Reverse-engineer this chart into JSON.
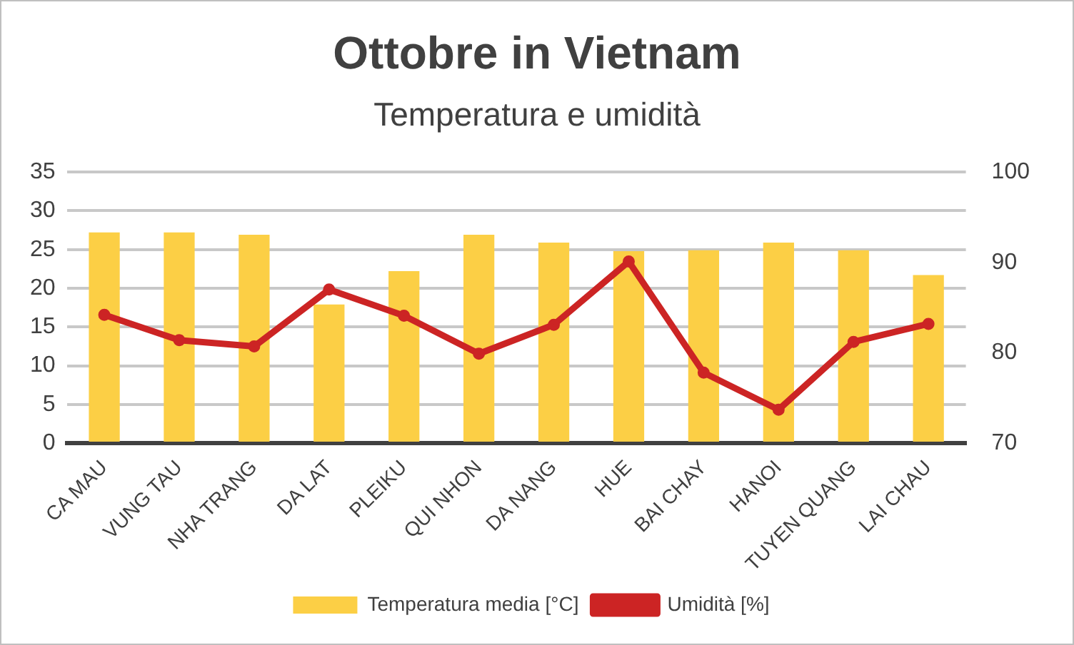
{
  "chart_data": {
    "type": "bar",
    "title": "Ottobre in Vietnam",
    "subtitle": "Temperatura e umidità",
    "categories": [
      "CA MAU",
      "VUNG TAU",
      "NHA TRANG",
      "DA LAT",
      "PLEIKU",
      "QUI NHON",
      "DA NANG",
      "HUE",
      "BAI CHAY",
      "HANOI",
      "TUYEN QUANG",
      "LAI CHAU"
    ],
    "series": [
      {
        "name": "Temperatura media [°C]",
        "color": "#fccf45",
        "values": [
          27.2,
          27.2,
          26.9,
          17.9,
          22.2,
          26.9,
          25.9,
          24.8,
          24.9,
          25.9,
          24.9,
          21.7
        ]
      },
      {
        "name": "Umidità [%]",
        "type": "line",
        "axis": "y2",
        "color": "#cc2424",
        "values": [
          84.2,
          81.4,
          80.7,
          87.0,
          84.1,
          79.9,
          83.1,
          90.1,
          77.8,
          73.7,
          81.2,
          83.2
        ]
      }
    ],
    "ylim": [
      0,
      35
    ],
    "yticks": [
      0,
      5,
      10,
      15,
      20,
      25,
      30,
      35
    ],
    "y2lim": [
      70,
      100
    ],
    "y2ticks": [
      70,
      80,
      90,
      100
    ],
    "grid": "y",
    "legend": "bottom",
    "marker": "circle",
    "line_style": "solid"
  }
}
